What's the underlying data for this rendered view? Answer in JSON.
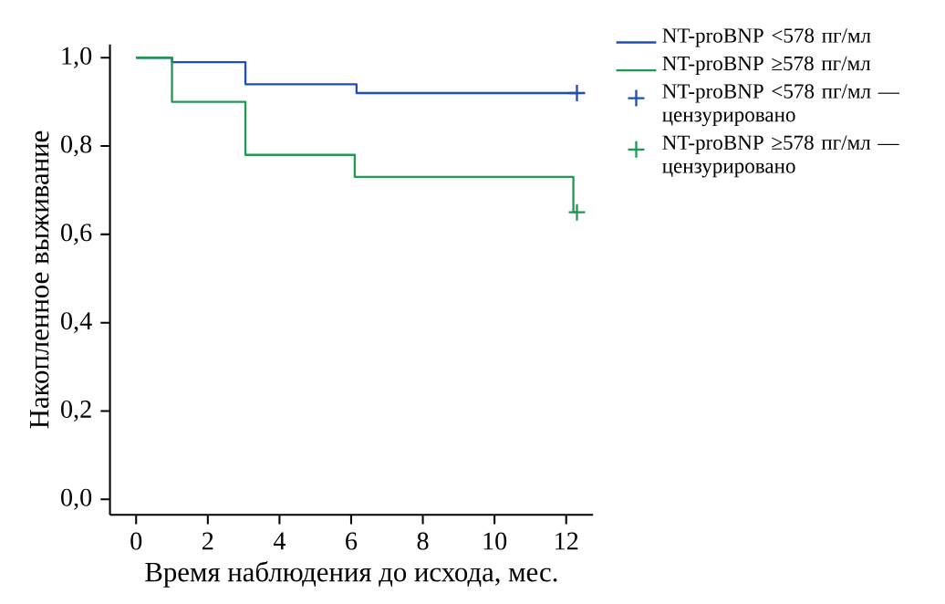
{
  "chart_data": {
    "type": "step",
    "xlabel": "Время наблюдения до исхода, мес.",
    "ylabel": "Накопленное выживание",
    "xlim": [
      -0.73,
      12.75
    ],
    "ylim": [
      -0.035,
      1.03
    ],
    "xticks": [
      0,
      2,
      4,
      6,
      8,
      10,
      12
    ],
    "yticks": [
      {
        "value": 0,
        "label": "0,0"
      },
      {
        "value": 0.2,
        "label": "0,2"
      },
      {
        "value": 0.4,
        "label": "0,4"
      },
      {
        "value": 0.6,
        "label": "0,6"
      },
      {
        "value": 0.8,
        "label": "0,8"
      },
      {
        "value": 1.0,
        "label": "1,0"
      }
    ],
    "legend": "top right",
    "line_style": "solid",
    "series": [
      {
        "name": "NT-proBNP <578 пг/мл",
        "color": "#1f4fb4",
        "x": [
          0,
          1,
          3.05,
          6.15,
          12.3
        ],
        "values": [
          1.0,
          0.99,
          0.94,
          0.92,
          0.92
        ]
      },
      {
        "name": "NT-proBNP ≥578 пг/мл",
        "color": "#1e9a50",
        "x": [
          0,
          1,
          3.05,
          6.1,
          12.2,
          12.3
        ],
        "values": [
          1.0,
          0.9,
          0.78,
          0.73,
          0.65,
          0.65
        ]
      },
      {
        "type": "scatter",
        "marker": "cross",
        "name": "NT-proBNP <578 пг/мл — цензурировано",
        "color": "#1f4fb4",
        "x": [
          12.3
        ],
        "values": [
          0.92
        ]
      },
      {
        "type": "scatter",
        "marker": "cross",
        "name": "NT-proBNP ≥578 пг/мл — цензурировано",
        "color": "#1e9a50",
        "x": [
          12.3
        ],
        "values": [
          0.65
        ]
      }
    ]
  }
}
